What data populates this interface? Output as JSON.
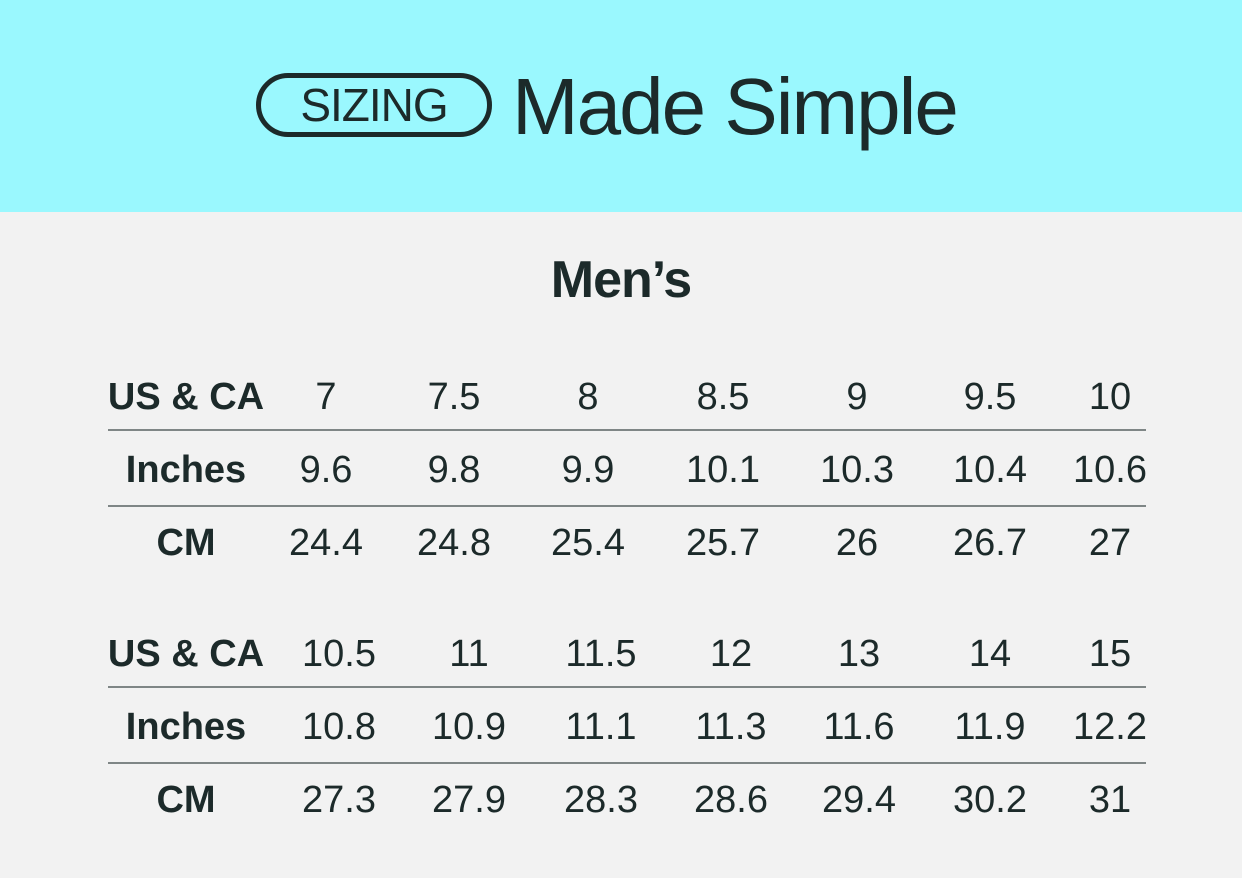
{
  "header": {
    "badge": "SIZING",
    "title": "Made Simple",
    "background": "#9af8fe"
  },
  "section_title": "Men’s",
  "tables": [
    {
      "rows": [
        {
          "label": "US & CA",
          "values": [
            "7",
            "7.5",
            "8",
            "8.5",
            "9",
            "9.5",
            "10"
          ]
        },
        {
          "label": "Inches",
          "values": [
            "9.6",
            "9.8",
            "9.9",
            "10.1",
            "10.3",
            "10.4",
            "10.6"
          ]
        },
        {
          "label": "CM",
          "values": [
            "24.4",
            "24.8",
            "25.4",
            "25.7",
            "26",
            "26.7",
            "27"
          ]
        }
      ]
    },
    {
      "rows": [
        {
          "label": "US & CA",
          "values": [
            "10.5",
            "11",
            "11.5",
            "12",
            "13",
            "14",
            "15"
          ]
        },
        {
          "label": "Inches",
          "values": [
            "10.8",
            "10.9",
            "11.1",
            "11.3",
            "11.6",
            "11.9",
            "12.2"
          ]
        },
        {
          "label": "CM",
          "values": [
            "27.3",
            "27.9",
            "28.3",
            "28.6",
            "29.4",
            "30.2",
            "31"
          ]
        }
      ]
    }
  ]
}
